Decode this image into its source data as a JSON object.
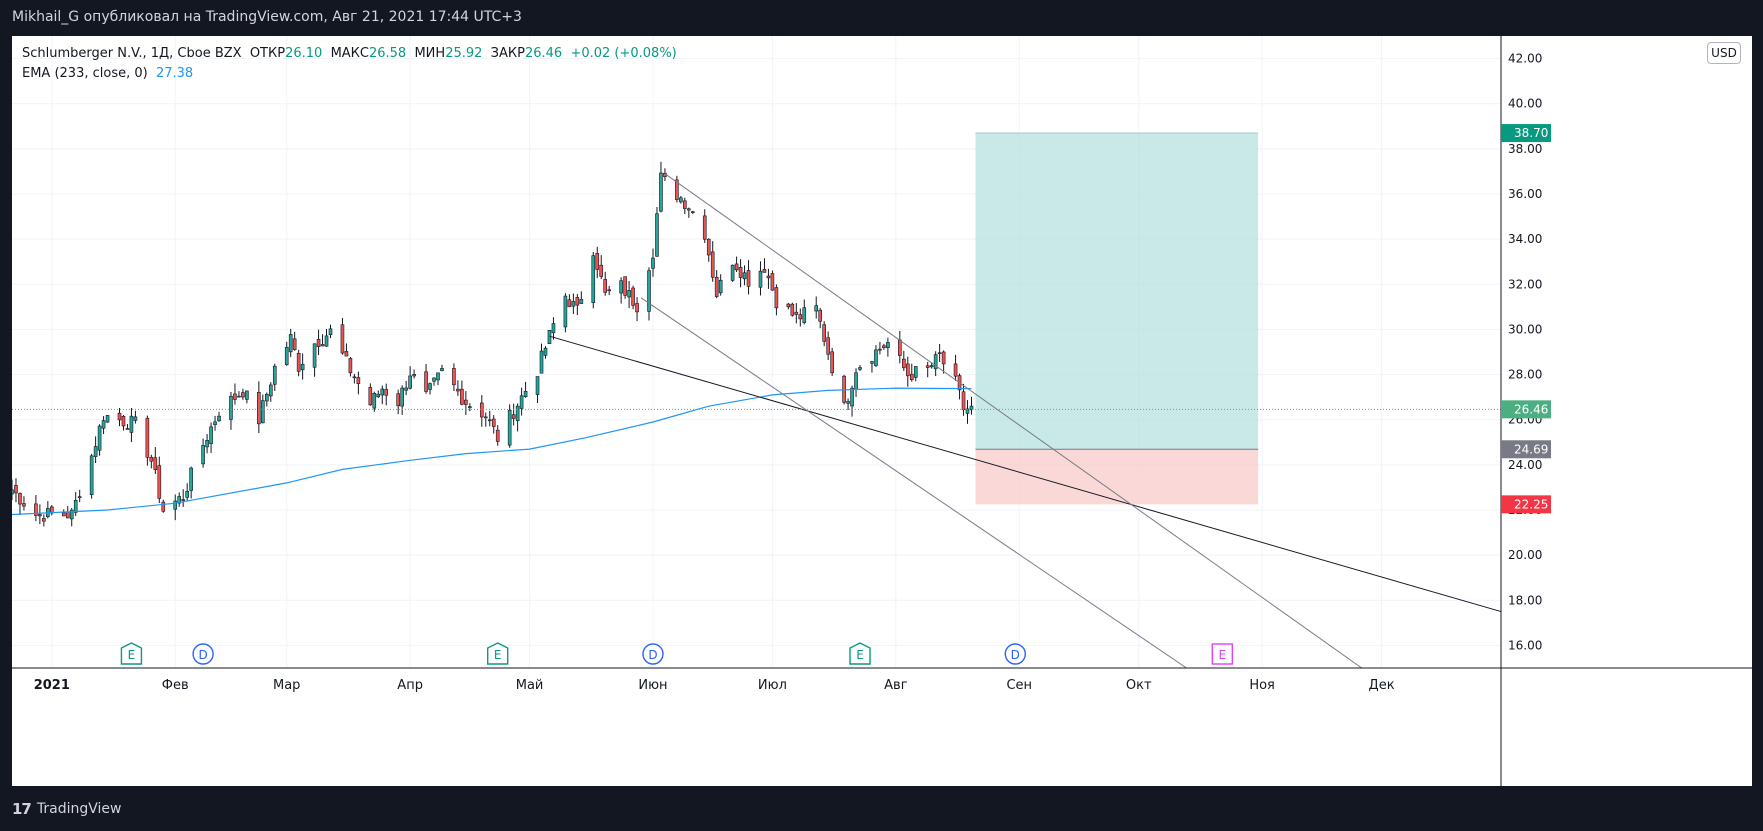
{
  "header": {
    "publisher": "Mikhail_G опубликовал на TradingView.com, Авг 21, 2021 17:44 UTC+3"
  },
  "legend": {
    "symbol": "Schlumberger N.V., 1Д, Cboe BZX",
    "open_label": "ОТКР",
    "open": "26.10",
    "high_label": "МАКС",
    "high": "26.58",
    "low_label": "МИН",
    "low": "25.92",
    "close_label": "ЗАКР",
    "close": "26.46",
    "change": "+0.02 (+0.08%)",
    "ema_label": "EMA (233, close, 0)",
    "ema_value": "27.38"
  },
  "currency": "USD",
  "footer": {
    "brand": "TradingView",
    "logo": "17"
  },
  "colors": {
    "up": "#26a69a",
    "down": "#ef5350",
    "ema": "#2196f3",
    "target_zone": "#b2dfdb",
    "stop_zone": "#f8c8c6"
  },
  "chart_data": {
    "type": "candlestick",
    "y_axis": {
      "min": 15,
      "max": 43,
      "ticks": [
        "16.00",
        "18.00",
        "20.00",
        "22.00",
        "24.00",
        "26.00",
        "28.00",
        "30.00",
        "32.00",
        "34.00",
        "36.00",
        "38.00",
        "40.00",
        "42.00"
      ]
    },
    "x_axis": {
      "start_date": "2020-12-22",
      "end_date": "2021-12-31",
      "labels": [
        {
          "date": "2021-01-01",
          "label": "2021",
          "bold": true
        },
        {
          "date": "2021-02-01",
          "label": "Фев"
        },
        {
          "date": "2021-03-01",
          "label": "Мар"
        },
        {
          "date": "2021-04-01",
          "label": "Апр"
        },
        {
          "date": "2021-05-01",
          "label": "Май"
        },
        {
          "date": "2021-06-01",
          "label": "Июн"
        },
        {
          "date": "2021-07-01",
          "label": "Июл"
        },
        {
          "date": "2021-08-01",
          "label": "Авг"
        },
        {
          "date": "2021-09-01",
          "label": "Сен"
        },
        {
          "date": "2021-10-01",
          "label": "Окт"
        },
        {
          "date": "2021-11-01",
          "label": "Ноя"
        },
        {
          "date": "2021-12-01",
          "label": "Дек"
        }
      ]
    },
    "price_key_points": [
      [
        "2020-12-22",
        22.9
      ],
      [
        "2020-12-28",
        21.8
      ],
      [
        "2021-01-06",
        21.8
      ],
      [
        "2021-01-11",
        24.4
      ],
      [
        "2021-01-14",
        26.2
      ],
      [
        "2021-01-22",
        25.8
      ],
      [
        "2021-01-26",
        24.2
      ],
      [
        "2021-01-29",
        22.0
      ],
      [
        "2021-02-03",
        22.6
      ],
      [
        "2021-02-08",
        24.9
      ],
      [
        "2021-02-12",
        26.4
      ],
      [
        "2021-02-18",
        27.3
      ],
      [
        "2021-02-22",
        26.0
      ],
      [
        "2021-02-26",
        28.3
      ],
      [
        "2021-03-02",
        29.6
      ],
      [
        "2021-03-04",
        28.4
      ],
      [
        "2021-03-08",
        29.4
      ],
      [
        "2021-03-12",
        29.9
      ],
      [
        "2021-03-16",
        28.5
      ],
      [
        "2021-03-22",
        26.7
      ],
      [
        "2021-03-25",
        27.4
      ],
      [
        "2021-03-29",
        26.8
      ],
      [
        "2021-04-01",
        28.1
      ],
      [
        "2021-04-05",
        27.0
      ],
      [
        "2021-04-09",
        28.1
      ],
      [
        "2021-04-15",
        26.8
      ],
      [
        "2021-04-20",
        26.2
      ],
      [
        "2021-04-23",
        25.2
      ],
      [
        "2021-04-27",
        26.4
      ],
      [
        "2021-05-03",
        28.2
      ],
      [
        "2021-05-07",
        30.2
      ],
      [
        "2021-05-10",
        31.5
      ],
      [
        "2021-05-13",
        30.8
      ],
      [
        "2021-05-17",
        33.6
      ],
      [
        "2021-05-20",
        31.5
      ],
      [
        "2021-05-24",
        31.9
      ],
      [
        "2021-05-28",
        31.1
      ],
      [
        "2021-06-01",
        33.5
      ],
      [
        "2021-06-03",
        36.7
      ],
      [
        "2021-06-07",
        36.0
      ],
      [
        "2021-06-10",
        35.5
      ],
      [
        "2021-06-14",
        34.3
      ],
      [
        "2021-06-17",
        31.6
      ],
      [
        "2021-06-21",
        33.1
      ],
      [
        "2021-06-25",
        32.2
      ],
      [
        "2021-06-29",
        32.8
      ],
      [
        "2021-07-02",
        31.3
      ],
      [
        "2021-07-07",
        30.5
      ],
      [
        "2021-07-12",
        30.9
      ],
      [
        "2021-07-15",
        29.0
      ],
      [
        "2021-07-19",
        26.5
      ],
      [
        "2021-07-22",
        28.3
      ],
      [
        "2021-07-26",
        28.9
      ],
      [
        "2021-07-30",
        29.4
      ],
      [
        "2021-08-04",
        28.0
      ],
      [
        "2021-08-09",
        28.2
      ],
      [
        "2021-08-12",
        28.8
      ],
      [
        "2021-08-16",
        27.6
      ],
      [
        "2021-08-18",
        26.5
      ],
      [
        "2021-08-20",
        26.46
      ]
    ],
    "ema_233_points": [
      [
        "2020-12-22",
        21.8
      ],
      [
        "2021-01-15",
        22.0
      ],
      [
        "2021-02-01",
        22.3
      ],
      [
        "2021-03-01",
        23.2
      ],
      [
        "2021-03-15",
        23.8
      ],
      [
        "2021-04-01",
        24.2
      ],
      [
        "2021-04-15",
        24.5
      ],
      [
        "2021-05-01",
        24.7
      ],
      [
        "2021-05-15",
        25.2
      ],
      [
        "2021-06-01",
        25.9
      ],
      [
        "2021-06-15",
        26.6
      ],
      [
        "2021-07-01",
        27.1
      ],
      [
        "2021-07-15",
        27.3
      ],
      [
        "2021-08-01",
        27.4
      ],
      [
        "2021-08-20",
        27.38
      ]
    ],
    "trendlines": [
      {
        "from": [
          "2021-05-06",
          29.7
        ],
        "to": [
          "2021-12-31",
          17.5
        ],
        "color": "#131722"
      },
      {
        "from": [
          "2021-06-04",
          36.9
        ],
        "to": [
          "2021-11-26",
          15.0
        ],
        "color": "#787b86"
      },
      {
        "from": [
          "2021-05-29",
          31.4
        ],
        "to": [
          "2021-10-13",
          15.0
        ],
        "color": "#787b86"
      }
    ],
    "long_position": {
      "start": "2021-08-21",
      "end": "2021-10-31",
      "target": 38.7,
      "entry": 24.69,
      "stop": 22.25
    },
    "price_labels": [
      {
        "value": 38.7,
        "text": "38.70",
        "bg": "#089981"
      },
      {
        "value": 26.46,
        "text": "26.46",
        "bg": "#4caf82"
      },
      {
        "value": 24.69,
        "text": "24.69",
        "bg": "#787b86"
      },
      {
        "value": 22.25,
        "text": "22.25",
        "bg": "#f23645"
      }
    ],
    "events": [
      {
        "date": "2021-01-21",
        "letter": "E",
        "type": "earnings"
      },
      {
        "date": "2021-02-08",
        "letter": "D",
        "type": "dividend"
      },
      {
        "date": "2021-04-23",
        "letter": "E",
        "type": "earnings"
      },
      {
        "date": "2021-06-01",
        "letter": "D",
        "type": "dividend"
      },
      {
        "date": "2021-07-23",
        "letter": "E",
        "type": "earnings"
      },
      {
        "date": "2021-08-31",
        "letter": "D",
        "type": "dividend"
      },
      {
        "date": "2021-10-22",
        "letter": "E",
        "type": "earnings-upcoming"
      }
    ]
  }
}
